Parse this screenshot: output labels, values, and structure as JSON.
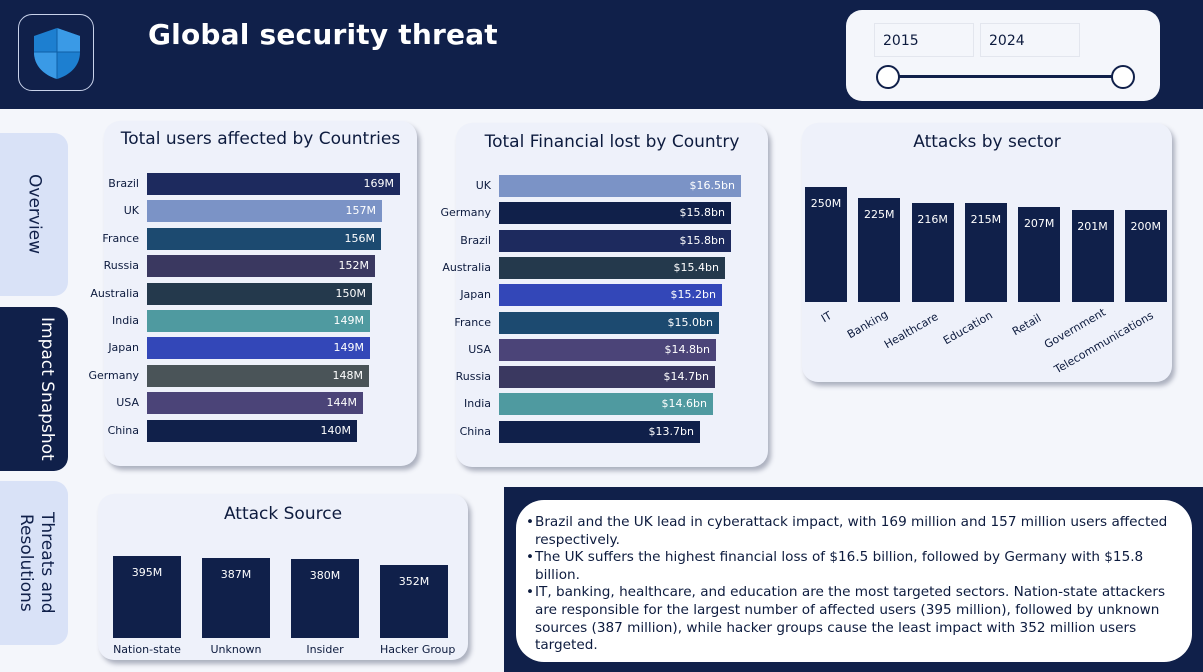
{
  "header": {
    "title": "Global security threat",
    "logo": "shield-icon"
  },
  "slicer": {
    "start_year": "2015",
    "end_year": "2024"
  },
  "nav": [
    {
      "label": "Overview"
    },
    {
      "label": "Impact Snapshot"
    },
    {
      "label": "Threats and Resolutions"
    }
  ],
  "colors": {
    "navy": "#10204a",
    "panel": "#eef1fa",
    "nav_light": "#d9e2f7"
  },
  "chart_data": [
    {
      "type": "bar",
      "orientation": "horizontal",
      "title": "Total users affected by Countries",
      "categories": [
        "Brazil",
        "UK",
        "France",
        "Russia",
        "Australia",
        "India",
        "Japan",
        "Germany",
        "USA",
        "China"
      ],
      "values": [
        169,
        157,
        156,
        152,
        150,
        149,
        149,
        148,
        144,
        140
      ],
      "labels": [
        "169M",
        "157M",
        "156M",
        "152M",
        "150M",
        "149M",
        "149M",
        "148M",
        "144M",
        "140M"
      ],
      "colors": [
        "#1d2a5e",
        "#7b93c6",
        "#1c4a70",
        "#3a3860",
        "#24394c",
        "#4f9aa0",
        "#3347b8",
        "#4a5458",
        "#4b4478",
        "#10204a"
      ],
      "xlim": [
        0,
        169
      ]
    },
    {
      "type": "bar",
      "orientation": "horizontal",
      "title": "Total Financial lost by Country",
      "categories": [
        "UK",
        "Germany",
        "Brazil",
        "Australia",
        "Japan",
        "France",
        "USA",
        "Russia",
        "India",
        "China"
      ],
      "values": [
        16.5,
        15.8,
        15.8,
        15.4,
        15.2,
        15.0,
        14.8,
        14.7,
        14.6,
        13.7
      ],
      "labels": [
        "$16.5bn",
        "$15.8bn",
        "$15.8bn",
        "$15.4bn",
        "$15.2bn",
        "$15.0bn",
        "$14.8bn",
        "$14.7bn",
        "$14.6bn",
        "$13.7bn"
      ],
      "colors": [
        "#7b93c6",
        "#10204a",
        "#1d2a5e",
        "#24394c",
        "#3347b8",
        "#1c4a70",
        "#4b4478",
        "#3a3860",
        "#4f9aa0",
        "#10204a"
      ],
      "xlim": [
        0,
        16.5
      ]
    },
    {
      "type": "bar",
      "orientation": "vertical",
      "title": "Attacks by sector",
      "categories": [
        "IT",
        "Banking",
        "Healthcare",
        "Education",
        "Retail",
        "Government",
        "Telecommunications"
      ],
      "values": [
        250,
        225,
        216,
        215,
        207,
        201,
        200
      ],
      "labels": [
        "250M",
        "225M",
        "216M",
        "215M",
        "207M",
        "201M",
        "200M"
      ],
      "ylim": [
        0,
        250
      ]
    },
    {
      "type": "bar",
      "orientation": "vertical",
      "title": "Attack Source",
      "categories": [
        "Nation-state",
        "Unknown",
        "Insider",
        "Hacker Group"
      ],
      "values": [
        395,
        387,
        380,
        352
      ],
      "labels": [
        "395M",
        "387M",
        "380M",
        "352M"
      ],
      "ylim": [
        0,
        395
      ]
    }
  ],
  "insights": [
    "Brazil and the UK lead in cyberattack impact, with 169 million and 157 million users affected respectively.",
    "The UK suffers the highest financial loss of $16.5 billion, followed by Germany with $15.8 billion.",
    "IT, banking, healthcare, and education are the most targeted sectors. Nation-state attackers are responsible for the largest number of affected users (395 million), followed by unknown sources (387 million), while hacker groups cause the least impact with 352 million users targeted."
  ]
}
